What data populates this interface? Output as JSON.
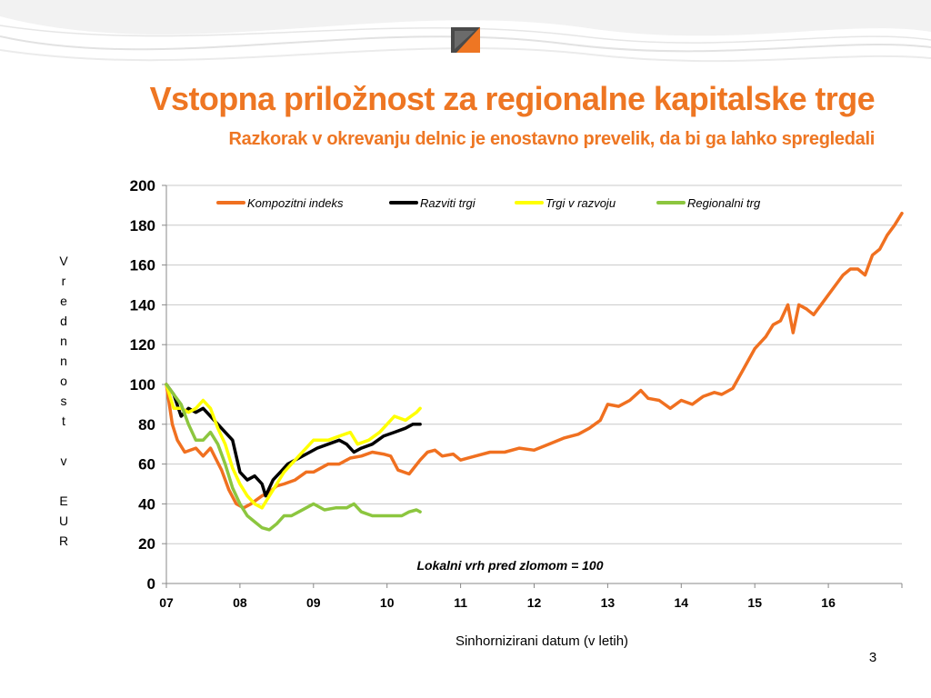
{
  "header": {
    "title": "Vstopna priložnost za regionalne kapitalske trge",
    "subtitle": "Razkorak v okrevanju delnic je enostavno prevelik, da bi ga lahko spregledali"
  },
  "footer": {
    "slide_number": "3"
  },
  "colors": {
    "accent": "#ee7623"
  },
  "chart_data": {
    "type": "line",
    "xlabel": "Sinhornizirani datum (v letih)",
    "ylabel": "Vrednnost v EUR",
    "ylim": [
      0,
      200
    ],
    "xlim": [
      2007.0,
      2017.0
    ],
    "yticks": [
      0,
      20,
      40,
      60,
      80,
      100,
      120,
      140,
      160,
      180,
      200
    ],
    "xticks": [
      "07",
      "08",
      "09",
      "10",
      "11",
      "12",
      "13",
      "14",
      "15",
      "16"
    ],
    "grid": "horizontal",
    "legend_position": "top",
    "annotation": "Lokalni vrh pred zlomom = 100",
    "series": [
      {
        "name": "Kompozitni indeks",
        "color": "#f07020",
        "points": [
          [
            2007.0,
            100
          ],
          [
            2007.08,
            80
          ],
          [
            2007.15,
            72
          ],
          [
            2007.25,
            66
          ],
          [
            2007.4,
            68
          ],
          [
            2007.5,
            64
          ],
          [
            2007.6,
            68
          ],
          [
            2007.75,
            57
          ],
          [
            2007.85,
            47
          ],
          [
            2007.95,
            40
          ],
          [
            2008.05,
            38
          ],
          [
            2008.15,
            40
          ],
          [
            2008.3,
            44
          ],
          [
            2008.4,
            46
          ],
          [
            2008.5,
            49
          ],
          [
            2008.6,
            50
          ],
          [
            2008.75,
            52
          ],
          [
            2008.9,
            56
          ],
          [
            2009.0,
            56
          ],
          [
            2009.2,
            60
          ],
          [
            2009.35,
            60
          ],
          [
            2009.5,
            63
          ],
          [
            2009.65,
            64
          ],
          [
            2009.8,
            66
          ],
          [
            2009.95,
            65
          ],
          [
            2010.05,
            64
          ],
          [
            2010.15,
            57
          ],
          [
            2010.3,
            55
          ],
          [
            2010.45,
            62
          ],
          [
            2010.55,
            66
          ],
          [
            2010.65,
            67
          ],
          [
            2010.75,
            64
          ],
          [
            2010.9,
            65
          ],
          [
            2011.0,
            62
          ],
          [
            2011.2,
            64
          ],
          [
            2011.4,
            66
          ],
          [
            2011.6,
            66
          ],
          [
            2011.8,
            68
          ],
          [
            2012.0,
            67
          ],
          [
            2012.2,
            70
          ],
          [
            2012.4,
            73
          ],
          [
            2012.6,
            75
          ],
          [
            2012.75,
            78
          ],
          [
            2012.9,
            82
          ],
          [
            2013.0,
            90
          ],
          [
            2013.15,
            89
          ],
          [
            2013.3,
            92
          ],
          [
            2013.45,
            97
          ],
          [
            2013.55,
            93
          ],
          [
            2013.7,
            92
          ],
          [
            2013.85,
            88
          ],
          [
            2014.0,
            92
          ],
          [
            2014.15,
            90
          ],
          [
            2014.3,
            94
          ],
          [
            2014.45,
            96
          ],
          [
            2014.55,
            95
          ],
          [
            2014.7,
            98
          ],
          [
            2014.85,
            108
          ],
          [
            2015.0,
            118
          ],
          [
            2015.15,
            124
          ],
          [
            2015.25,
            130
          ],
          [
            2015.35,
            132
          ],
          [
            2015.45,
            140
          ],
          [
            2015.52,
            126
          ],
          [
            2015.6,
            140
          ],
          [
            2015.7,
            138
          ],
          [
            2015.8,
            135
          ],
          [
            2015.9,
            140
          ],
          [
            2016.0,
            145
          ],
          [
            2016.1,
            150
          ],
          [
            2016.2,
            155
          ],
          [
            2016.3,
            158
          ],
          [
            2016.4,
            158
          ],
          [
            2016.5,
            155
          ],
          [
            2016.6,
            165
          ],
          [
            2016.7,
            168
          ],
          [
            2016.8,
            175
          ],
          [
            2016.9,
            180
          ],
          [
            2017.0,
            186
          ]
        ]
      },
      {
        "name": "Razviti trgi",
        "color": "#000000",
        "points": [
          [
            2007.0,
            100
          ],
          [
            2007.1,
            95
          ],
          [
            2007.2,
            84
          ],
          [
            2007.3,
            88
          ],
          [
            2007.4,
            86
          ],
          [
            2007.5,
            88
          ],
          [
            2007.6,
            84
          ],
          [
            2007.7,
            80
          ],
          [
            2007.8,
            76
          ],
          [
            2007.9,
            72
          ],
          [
            2008.0,
            56
          ],
          [
            2008.1,
            52
          ],
          [
            2008.2,
            54
          ],
          [
            2008.3,
            50
          ],
          [
            2008.35,
            44
          ],
          [
            2008.45,
            52
          ],
          [
            2008.55,
            56
          ],
          [
            2008.65,
            60
          ],
          [
            2008.75,
            62
          ],
          [
            2008.85,
            64
          ],
          [
            2008.95,
            66
          ],
          [
            2009.05,
            68
          ],
          [
            2009.2,
            70
          ],
          [
            2009.35,
            72
          ],
          [
            2009.45,
            70
          ],
          [
            2009.55,
            66
          ],
          [
            2009.65,
            68
          ],
          [
            2009.8,
            70
          ],
          [
            2009.95,
            74
          ],
          [
            2010.1,
            76
          ],
          [
            2010.25,
            78
          ],
          [
            2010.35,
            80
          ],
          [
            2010.45,
            80
          ]
        ]
      },
      {
        "name": "Trgi v razvoju",
        "color": "#ffff00",
        "points": [
          [
            2007.0,
            100
          ],
          [
            2007.1,
            88
          ],
          [
            2007.2,
            88
          ],
          [
            2007.3,
            86
          ],
          [
            2007.4,
            88
          ],
          [
            2007.5,
            92
          ],
          [
            2007.6,
            88
          ],
          [
            2007.7,
            78
          ],
          [
            2007.8,
            70
          ],
          [
            2007.9,
            58
          ],
          [
            2008.0,
            50
          ],
          [
            2008.1,
            44
          ],
          [
            2008.2,
            40
          ],
          [
            2008.3,
            38
          ],
          [
            2008.4,
            44
          ],
          [
            2008.5,
            50
          ],
          [
            2008.6,
            56
          ],
          [
            2008.7,
            60
          ],
          [
            2008.8,
            64
          ],
          [
            2008.9,
            68
          ],
          [
            2009.0,
            72
          ],
          [
            2009.2,
            72
          ],
          [
            2009.35,
            74
          ],
          [
            2009.5,
            76
          ],
          [
            2009.6,
            70
          ],
          [
            2009.75,
            72
          ],
          [
            2009.9,
            76
          ],
          [
            2010.0,
            80
          ],
          [
            2010.1,
            84
          ],
          [
            2010.25,
            82
          ],
          [
            2010.4,
            86
          ],
          [
            2010.45,
            88
          ]
        ]
      },
      {
        "name": "Regionalni trg",
        "color": "#8cc63f",
        "points": [
          [
            2007.0,
            100
          ],
          [
            2007.1,
            95
          ],
          [
            2007.2,
            90
          ],
          [
            2007.3,
            80
          ],
          [
            2007.4,
            72
          ],
          [
            2007.5,
            72
          ],
          [
            2007.6,
            76
          ],
          [
            2007.7,
            70
          ],
          [
            2007.8,
            60
          ],
          [
            2007.9,
            48
          ],
          [
            2008.0,
            40
          ],
          [
            2008.1,
            34
          ],
          [
            2008.2,
            31
          ],
          [
            2008.3,
            28
          ],
          [
            2008.4,
            27
          ],
          [
            2008.5,
            30
          ],
          [
            2008.6,
            34
          ],
          [
            2008.7,
            34
          ],
          [
            2008.8,
            36
          ],
          [
            2008.9,
            38
          ],
          [
            2009.0,
            40
          ],
          [
            2009.15,
            37
          ],
          [
            2009.3,
            38
          ],
          [
            2009.45,
            38
          ],
          [
            2009.55,
            40
          ],
          [
            2009.65,
            36
          ],
          [
            2009.8,
            34
          ],
          [
            2009.95,
            34
          ],
          [
            2010.1,
            34
          ],
          [
            2010.2,
            34
          ],
          [
            2010.3,
            36
          ],
          [
            2010.4,
            37
          ],
          [
            2010.45,
            36
          ]
        ]
      }
    ]
  }
}
